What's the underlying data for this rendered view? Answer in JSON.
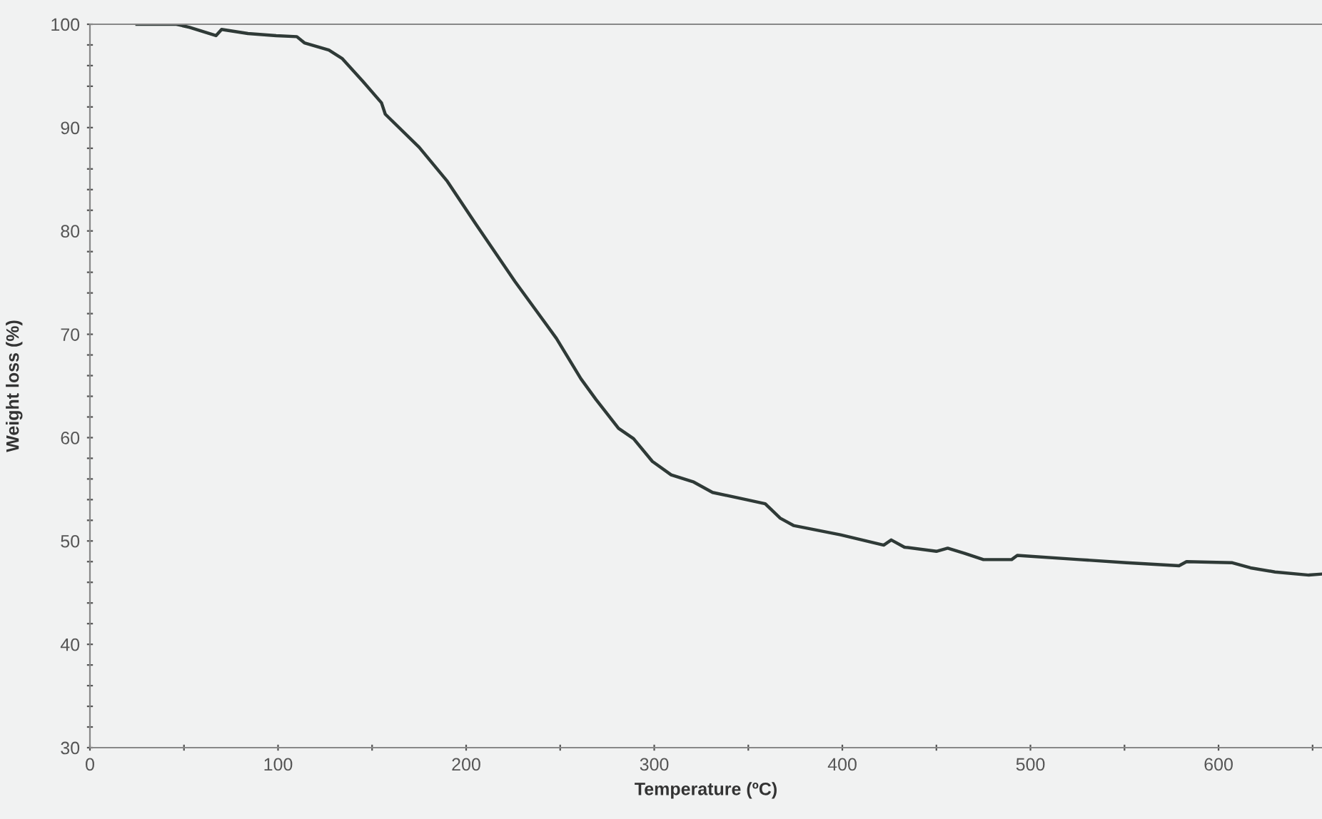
{
  "chart_data": {
    "type": "line",
    "xlabel": "Temperature (ºC)",
    "ylabel": "Weight loss (%)",
    "xlim": [
      0,
      655
    ],
    "ylim": [
      30,
      100
    ],
    "xticks": [
      0,
      {
        "value": 50,
        "label": null
      },
      100,
      {
        "value": 150,
        "label": null
      },
      200,
      {
        "value": 250,
        "label": null
      },
      300,
      {
        "value": 350,
        "label": null
      },
      400,
      {
        "value": 450,
        "label": null
      },
      500,
      {
        "value": 550,
        "label": null
      },
      600,
      {
        "value": 650,
        "label": null
      }
    ],
    "yticks": [
      30,
      {
        "value": 32,
        "label": null
      },
      {
        "value": 34,
        "label": null
      },
      {
        "value": 36,
        "label": null
      },
      {
        "value": 38,
        "label": null
      },
      40,
      {
        "value": 42,
        "label": null
      },
      {
        "value": 44,
        "label": null
      },
      {
        "value": 46,
        "label": null
      },
      {
        "value": 48,
        "label": null
      },
      50,
      {
        "value": 52,
        "label": null
      },
      {
        "value": 54,
        "label": null
      },
      {
        "value": 56,
        "label": null
      },
      {
        "value": 58,
        "label": null
      },
      60,
      {
        "value": 62,
        "label": null
      },
      {
        "value": 64,
        "label": null
      },
      {
        "value": 66,
        "label": null
      },
      {
        "value": 68,
        "label": null
      },
      70,
      {
        "value": 72,
        "label": null
      },
      {
        "value": 74,
        "label": null
      },
      {
        "value": 76,
        "label": null
      },
      {
        "value": 78,
        "label": null
      },
      80,
      {
        "value": 82,
        "label": null
      },
      {
        "value": 84,
        "label": null
      },
      {
        "value": 86,
        "label": null
      },
      {
        "value": 88,
        "label": null
      },
      90,
      {
        "value": 92,
        "label": null
      },
      {
        "value": 94,
        "label": null
      },
      {
        "value": 96,
        "label": null
      },
      {
        "value": 98,
        "label": null
      },
      100
    ],
    "grid": false,
    "legend": false,
    "marker": "none",
    "line_style": "solid",
    "series": [
      {
        "color": "#2f3a37",
        "x": [
          25,
          46,
          53,
          67,
          70,
          84,
          99,
          110,
          114,
          127,
          134,
          145,
          155,
          157,
          175,
          190,
          205,
          226,
          248,
          261,
          269,
          281,
          289,
          299,
          309,
          321,
          331,
          349,
          359,
          367,
          374,
          399,
          422,
          426,
          433,
          450,
          456,
          465,
          475,
          490,
          493,
          526,
          551,
          579,
          583,
          607,
          617,
          630,
          648,
          655
        ],
        "values": [
          100,
          100,
          99.7,
          98.9,
          99.5,
          99.1,
          98.9,
          98.8,
          98.2,
          97.5,
          96.7,
          94.5,
          92.4,
          91.3,
          88.1,
          84.8,
          80.7,
          75.1,
          69.6,
          65.7,
          63.7,
          60.9,
          59.9,
          57.7,
          56.4,
          55.7,
          54.7,
          54.0,
          53.6,
          52.2,
          51.5,
          50.6,
          49.6,
          50.1,
          49.4,
          49.0,
          49.3,
          48.8,
          48.2,
          48.2,
          48.6,
          48.2,
          47.9,
          47.6,
          48.0,
          47.9,
          47.4,
          47.0,
          46.7,
          46.8
        ]
      }
    ]
  }
}
